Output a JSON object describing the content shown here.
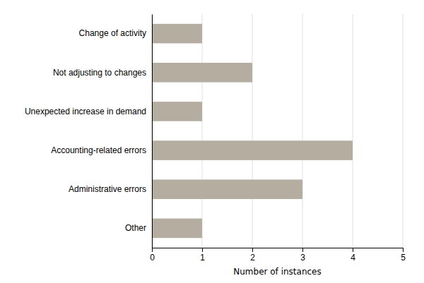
{
  "chart_data": {
    "type": "bar",
    "orientation": "horizontal",
    "categories": [
      "Change of activity",
      "Not adjusting to changes",
      "Unexpected increase in demand",
      "Accounting-related errors",
      "Administrative errors",
      "Other"
    ],
    "values": [
      1,
      2,
      1,
      4,
      3,
      1
    ],
    "color": "#b5ada0",
    "xlabel": "Number of instances",
    "xlim": [
      0,
      5
    ],
    "xticks": [
      0,
      1,
      2,
      3,
      4,
      5
    ],
    "grid": true
  }
}
